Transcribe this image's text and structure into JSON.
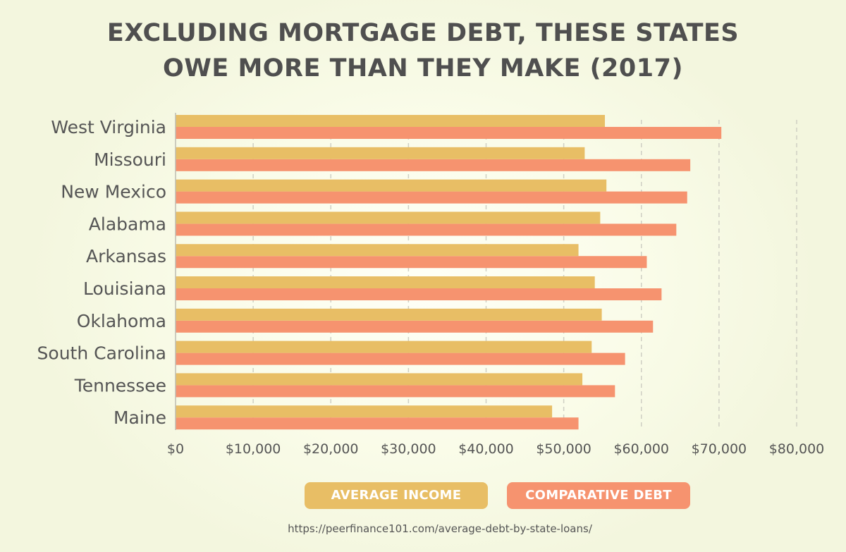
{
  "colors": {
    "income": "#e8be65",
    "debt": "#f6936f",
    "text": "#555555",
    "grid": "#cfcfc4",
    "axis": "#bdbdb2"
  },
  "chart_data": {
    "type": "bar",
    "orientation": "horizontal",
    "title_lines": [
      "EXCLUDING MORTGAGE DEBT, THESE STATES",
      "OWE MORE THAN THEY MAKE (2017)"
    ],
    "categories": [
      "West Virginia",
      "Missouri",
      "New Mexico",
      "Alabama",
      "Arkansas",
      "Louisiana",
      "Oklahoma",
      "South Carolina",
      "Tennessee",
      "Maine"
    ],
    "series": [
      {
        "name": "AVERAGE INCOME",
        "color": "#e8be65",
        "values": [
          55300,
          52700,
          55500,
          54700,
          51900,
          54000,
          54900,
          53600,
          52400,
          48500
        ]
      },
      {
        "name": "COMPARATIVE DEBT",
        "color": "#f6936f",
        "values": [
          70300,
          66300,
          65900,
          64500,
          60700,
          62600,
          61500,
          57900,
          56600,
          51900
        ]
      }
    ],
    "x_ticks": [
      "$0",
      "$10,000",
      "$20,000",
      "$30,000",
      "$40,000",
      "$50,000",
      "$60,000",
      "$70,000",
      "$80,000"
    ],
    "xlim": [
      0,
      80000
    ],
    "grid": "vertical dashed",
    "legend": "bottom",
    "source": "https://peerfinance101.com/average-debt-by-state-loans/"
  }
}
